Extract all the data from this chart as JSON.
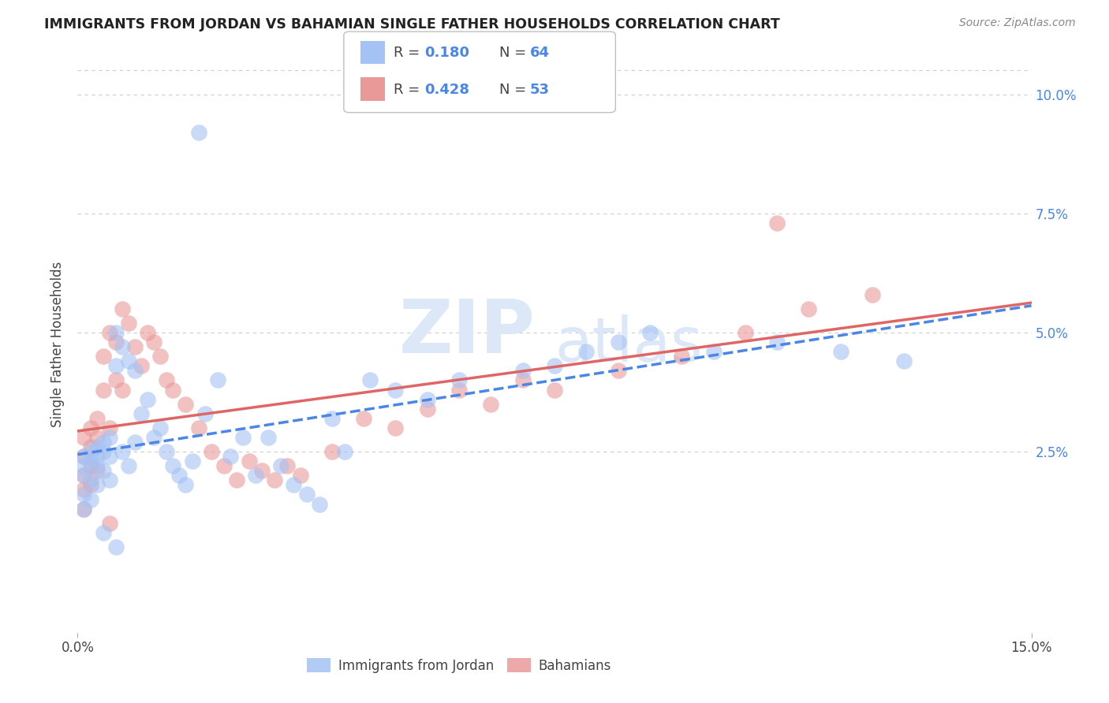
{
  "title": "IMMIGRANTS FROM JORDAN VS BAHAMIAN SINGLE FATHER HOUSEHOLDS CORRELATION CHART",
  "source": "Source: ZipAtlas.com",
  "ylabel": "Single Father Households",
  "xlim": [
    0.0,
    0.15
  ],
  "ylim": [
    -0.013,
    0.108
  ],
  "ytick_positions": [
    0.025,
    0.05,
    0.075,
    0.1
  ],
  "ytick_labels": [
    "2.5%",
    "5.0%",
    "7.5%",
    "10.0%"
  ],
  "xtick_positions": [
    0.0,
    0.15
  ],
  "xtick_labels": [
    "0.0%",
    "15.0%"
  ],
  "legend_r1": "R = 0.180",
  "legend_n1": "N = 64",
  "legend_r2": "R = 0.428",
  "legend_n2": "N = 53",
  "color_jordan": "#a4c2f4",
  "color_bahamian": "#ea9999",
  "color_jordan_line": "#4a86e8",
  "color_bahamian_line": "#e06666",
  "color_text_blue": "#4a86e8",
  "color_grid": "#cccccc",
  "color_title": "#222222",
  "color_source": "#888888",
  "color_watermark": "#dce8f8",
  "watermark_zip": "ZIP",
  "watermark_atlas": "atlas",
  "jordan_x": [
    0.001,
    0.001,
    0.001,
    0.001,
    0.001,
    0.002,
    0.002,
    0.002,
    0.002,
    0.003,
    0.003,
    0.003,
    0.003,
    0.004,
    0.004,
    0.004,
    0.005,
    0.005,
    0.005,
    0.006,
    0.006,
    0.007,
    0.007,
    0.008,
    0.008,
    0.009,
    0.009,
    0.01,
    0.011,
    0.012,
    0.013,
    0.014,
    0.015,
    0.016,
    0.017,
    0.018,
    0.02,
    0.022,
    0.024,
    0.026,
    0.028,
    0.03,
    0.032,
    0.034,
    0.036,
    0.038,
    0.04,
    0.042,
    0.046,
    0.05,
    0.055,
    0.06,
    0.07,
    0.075,
    0.08,
    0.085,
    0.09,
    0.1,
    0.11,
    0.12,
    0.13,
    0.019,
    0.004,
    0.006
  ],
  "jordan_y": [
    0.024,
    0.022,
    0.02,
    0.016,
    0.013,
    0.025,
    0.023,
    0.019,
    0.015,
    0.026,
    0.024,
    0.022,
    0.018,
    0.027,
    0.025,
    0.021,
    0.028,
    0.024,
    0.019,
    0.05,
    0.043,
    0.047,
    0.025,
    0.044,
    0.022,
    0.042,
    0.027,
    0.033,
    0.036,
    0.028,
    0.03,
    0.025,
    0.022,
    0.02,
    0.018,
    0.023,
    0.033,
    0.04,
    0.024,
    0.028,
    0.02,
    0.028,
    0.022,
    0.018,
    0.016,
    0.014,
    0.032,
    0.025,
    0.04,
    0.038,
    0.036,
    0.04,
    0.042,
    0.043,
    0.046,
    0.048,
    0.05,
    0.046,
    0.048,
    0.046,
    0.044,
    0.092,
    0.008,
    0.005
  ],
  "bahamian_x": [
    0.001,
    0.001,
    0.001,
    0.001,
    0.001,
    0.002,
    0.002,
    0.002,
    0.002,
    0.003,
    0.003,
    0.003,
    0.004,
    0.004,
    0.005,
    0.005,
    0.006,
    0.006,
    0.007,
    0.007,
    0.008,
    0.009,
    0.01,
    0.011,
    0.012,
    0.013,
    0.014,
    0.015,
    0.017,
    0.019,
    0.021,
    0.023,
    0.025,
    0.027,
    0.029,
    0.031,
    0.033,
    0.035,
    0.04,
    0.045,
    0.05,
    0.055,
    0.06,
    0.065,
    0.07,
    0.075,
    0.085,
    0.095,
    0.105,
    0.115,
    0.125,
    0.11,
    0.005
  ],
  "bahamian_y": [
    0.028,
    0.024,
    0.02,
    0.017,
    0.013,
    0.03,
    0.026,
    0.022,
    0.018,
    0.032,
    0.028,
    0.021,
    0.045,
    0.038,
    0.05,
    0.03,
    0.048,
    0.04,
    0.055,
    0.038,
    0.052,
    0.047,
    0.043,
    0.05,
    0.048,
    0.045,
    0.04,
    0.038,
    0.035,
    0.03,
    0.025,
    0.022,
    0.019,
    0.023,
    0.021,
    0.019,
    0.022,
    0.02,
    0.025,
    0.032,
    0.03,
    0.034,
    0.038,
    0.035,
    0.04,
    0.038,
    0.042,
    0.045,
    0.05,
    0.055,
    0.058,
    0.073,
    0.01
  ]
}
